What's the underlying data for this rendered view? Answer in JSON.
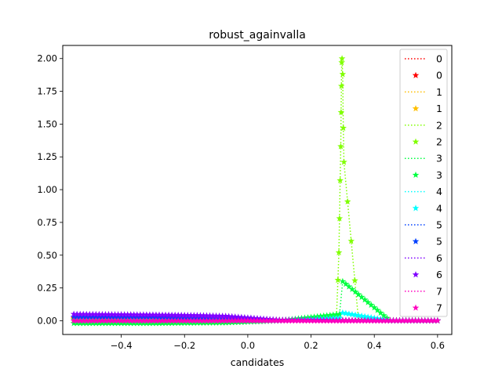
{
  "chart_data": {
    "type": "line",
    "title": "robust_againvalla",
    "xlabel": "candidates",
    "ylabel": "",
    "xlim": [
      -0.585,
      0.645
    ],
    "ylim": [
      -0.105,
      2.1
    ],
    "xticks": [
      "−0.4",
      "−0.2",
      "0.0",
      "0.2",
      "0.4",
      "0.6"
    ],
    "xtick_values": [
      -0.4,
      -0.2,
      0.0,
      0.2,
      0.4,
      0.6
    ],
    "yticks": [
      "0.00",
      "0.25",
      "0.50",
      "0.75",
      "1.00",
      "1.25",
      "1.50",
      "1.75",
      "2.00"
    ],
    "ytick_values": [
      0,
      0.25,
      0.5,
      0.75,
      1.0,
      1.25,
      1.5,
      1.75,
      2.0
    ],
    "legend_position": "upper right",
    "legend": [
      "0",
      "0",
      "1",
      "1",
      "2",
      "2",
      "3",
      "3",
      "4",
      "4",
      "5",
      "5",
      "6",
      "6",
      "7",
      "7"
    ],
    "series": [
      {
        "name": "0",
        "color": "#ff0000",
        "x": [
          -0.55,
          -0.4,
          -0.2,
          -0.07,
          0.1,
          0.3,
          0.45,
          0.6
        ],
        "y": [
          0.02,
          0.02,
          0.015,
          0.01,
          0.005,
          0.003,
          0.002,
          0.001
        ]
      },
      {
        "name": "1",
        "color": "#ffbf00",
        "x": [
          -0.55,
          -0.4,
          -0.2,
          -0.07,
          0.1,
          0.3,
          0.45,
          0.6
        ],
        "y": [
          0.01,
          0.01,
          0.008,
          0.006,
          0.004,
          0.002,
          0.001,
          0.001
        ]
      },
      {
        "name": "2",
        "color": "#80ff00",
        "x": [
          -0.55,
          -0.3,
          -0.07,
          0.1,
          0.28,
          0.285,
          0.288,
          0.29,
          0.292,
          0.294,
          0.295,
          0.296,
          0.297,
          0.298,
          0.3,
          0.302,
          0.304,
          0.35,
          0.45,
          0.6
        ],
        "y": [
          0.01,
          0.01,
          0.005,
          0.003,
          0.01,
          0.31,
          0.52,
          0.78,
          1.07,
          1.33,
          1.59,
          1.79,
          1.97,
          2.0,
          1.88,
          1.47,
          1.21,
          0.005,
          0.002,
          0.001
        ]
      },
      {
        "name": "3",
        "color": "#00ff40",
        "x": [
          -0.55,
          -0.3,
          -0.07,
          0.1,
          0.29,
          0.3,
          0.45,
          0.6
        ],
        "y": [
          -0.02,
          -0.02,
          -0.015,
          0.0,
          0.05,
          0.3,
          0.0,
          0.0
        ]
      },
      {
        "name": "4",
        "color": "#00ffff",
        "x": [
          -0.55,
          -0.3,
          -0.07,
          0.1,
          0.29,
          0.3,
          0.45,
          0.6
        ],
        "y": [
          0.0,
          0.0,
          0.0,
          0.0,
          0.02,
          0.06,
          0.0,
          0.0
        ]
      },
      {
        "name": "5",
        "color": "#0040ff",
        "x": [
          -0.55,
          -0.3,
          -0.07,
          0.1,
          0.3,
          0.45,
          0.6
        ],
        "y": [
          0.03,
          0.03,
          0.02,
          0.005,
          0.002,
          0.001,
          0.001
        ]
      },
      {
        "name": "6",
        "color": "#8000ff",
        "x": [
          -0.55,
          -0.45,
          -0.3,
          -0.15,
          -0.07,
          0.1,
          0.3,
          0.6
        ],
        "y": [
          0.05,
          0.048,
          0.045,
          0.04,
          0.035,
          0.005,
          0.002,
          0.001
        ]
      },
      {
        "name": "7",
        "color": "#ff00bf",
        "x": [
          -0.55,
          -0.4,
          -0.2,
          -0.07,
          0.1,
          0.3,
          0.45,
          0.6
        ],
        "y": [
          0.0,
          0.0,
          0.0,
          0.0,
          0.0,
          0.0,
          0.0,
          0.0
        ]
      }
    ]
  }
}
